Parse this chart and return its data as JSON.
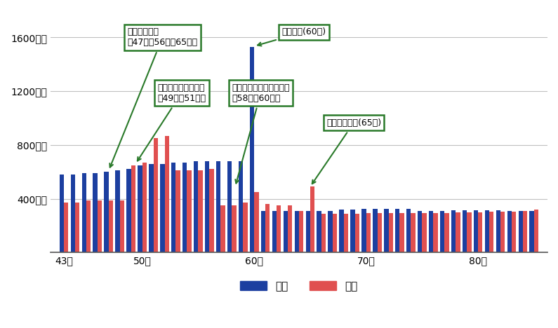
{
  "ages": [
    43,
    44,
    45,
    46,
    47,
    48,
    49,
    50,
    51,
    52,
    53,
    54,
    55,
    56,
    57,
    58,
    59,
    60,
    61,
    62,
    63,
    64,
    65,
    66,
    67,
    68,
    69,
    70,
    71,
    72,
    73,
    74,
    75,
    76,
    77,
    78,
    79,
    80,
    81,
    82,
    83,
    84,
    85
  ],
  "income": [
    580,
    580,
    590,
    590,
    600,
    610,
    620,
    650,
    660,
    660,
    670,
    670,
    680,
    680,
    680,
    680,
    680,
    1530,
    310,
    310,
    310,
    310,
    310,
    310,
    310,
    320,
    320,
    325,
    325,
    325,
    325,
    325,
    310,
    310,
    310,
    315,
    315,
    315,
    315,
    315,
    310,
    310,
    310
  ],
  "expense": [
    370,
    370,
    390,
    390,
    390,
    390,
    650,
    670,
    850,
    870,
    610,
    610,
    610,
    620,
    350,
    350,
    370,
    450,
    360,
    350,
    350,
    310,
    490,
    290,
    290,
    290,
    290,
    295,
    295,
    295,
    295,
    295,
    295,
    295,
    295,
    300,
    300,
    300,
    305,
    305,
    305,
    310,
    320
  ],
  "income_color": "#1c3fa0",
  "expense_color": "#e05050",
  "bg_color": "#ffffff",
  "grid_color": "#c0c0c0",
  "yticks": [
    0,
    400,
    800,
    1200,
    1600
  ],
  "ytick_labels": [
    "",
    "400万円",
    "800万円",
    "1200万円",
    "1600万円"
  ],
  "xtick_ages": [
    43,
    50,
    60,
    70,
    80
  ],
  "xtick_labels": [
    "43歳",
    "50歳",
    "60歳",
    "70歳",
    "80歳"
  ],
  "ylim": [
    0,
    1800
  ],
  "legend_labels": [
    "収入",
    "支出"
  ],
  "bar_width": 0.4
}
